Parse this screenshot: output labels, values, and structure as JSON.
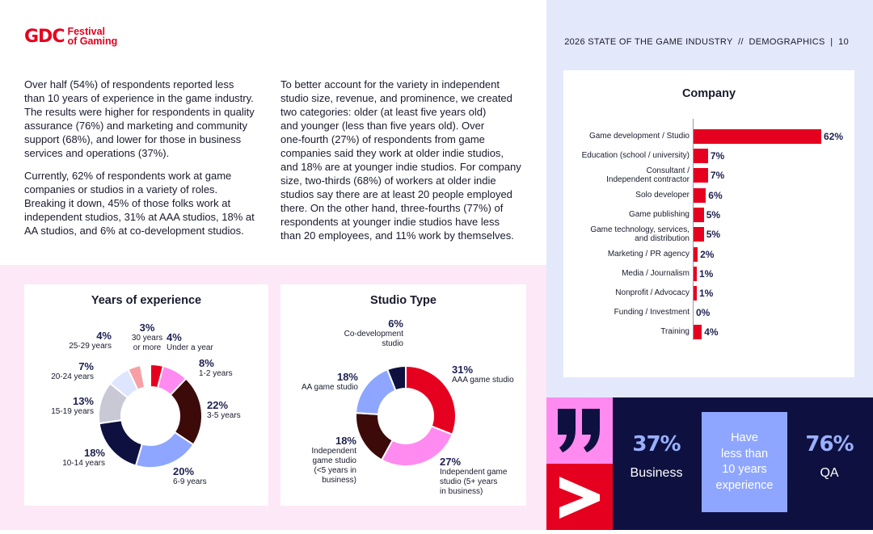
{
  "header": {
    "logo_mark": "GDC",
    "logo_line1": "Festival",
    "logo_line2": "of Gaming",
    "report_title": "2026 STATE OF THE GAME INDUSTRY  //  DEMOGRAPHICS  |  10"
  },
  "body": {
    "col1_p1": [
      "Over half (54%) of respondents reported less",
      "than 10 years of experience in the game industry.",
      "The results were higher for respondents in quality",
      "assurance (76%) and marketing and community",
      "support (68%), and lower for those in business",
      "services and operations (37%)."
    ],
    "col1_p2": [
      "Currently, 62% of respondents work at game",
      "companies or studios in a variety of roles.",
      "Breaking it down, 45% of those folks work at",
      "independent studios, 31% at AAA studios, 18% at",
      "AA studios, and 6% at co-development studios."
    ],
    "col2_p1": [
      "To better account for the variety in independent",
      "studio size, revenue, and prominence, we created",
      "two categories: older (at least five years old)",
      "and younger (less than five years old). Over",
      "one-fourth (27%) of respondents from game",
      "companies said they work at older indie studios,",
      "and 18% are at younger indie studios. For company",
      "size, two-thirds (68%) of workers at older indie",
      "studios say there are at least 20 people employed",
      "there. On the other hand, three-fourths (77%) of",
      "respondents at younger indie studios have less",
      "than 20 employees, and 11% work by themselves."
    ]
  },
  "chart_data": [
    {
      "type": "pie",
      "title": "Years of experience",
      "categories": [
        "Under a year",
        "1-2 years",
        "3-5 years",
        "6-9 years",
        "10-14 years",
        "15-19 years",
        "20-24 years",
        "25-29 years",
        "30 years or more"
      ],
      "values": [
        4,
        8,
        22,
        20,
        18,
        13,
        7,
        4,
        3
      ],
      "value_labels": [
        "4%",
        "8%",
        "22%",
        "20%",
        "18%",
        "13%",
        "7%",
        "4%",
        "3%"
      ],
      "colors": [
        "#e6001f",
        "#ff8af0",
        "#3d0a0a",
        "#8ea6ff",
        "#0e1140",
        "#c8c9d4",
        "#dde5ff",
        "#f6a0a6",
        "#ffffff"
      ]
    },
    {
      "type": "pie",
      "title": "Studio Type",
      "categories": [
        "AAA game studio",
        "Independent game studio (5+ years in business)",
        "Independent game studio (<5 years in business)",
        "AA game studio",
        "Co-development studio"
      ],
      "values": [
        31,
        27,
        18,
        18,
        6
      ],
      "value_labels": [
        "31%",
        "27%",
        "18%",
        "18%",
        "6%"
      ],
      "colors": [
        "#e6001f",
        "#ff8af0",
        "#3d0a0a",
        "#8ea6ff",
        "#0e1140"
      ]
    },
    {
      "type": "bar",
      "title": "Company",
      "categories": [
        "Game development / Studio",
        "Education (school / university)",
        "Consultant / Independent contractor",
        "Solo developer",
        "Game publishing",
        "Game technology, services, and distribution",
        "Marketing / PR agency",
        "Media / Journalism",
        "Nonprofit / Advocacy",
        "Funding / Investment",
        "Training"
      ],
      "values": [
        62,
        7,
        7,
        6,
        5,
        5,
        2,
        1,
        1,
        0,
        4
      ],
      "value_labels": [
        "62%",
        "7%",
        "7%",
        "6%",
        "5%",
        "5%",
        "2%",
        "1%",
        "1%",
        "0%",
        "4%"
      ],
      "color": "#e6001f"
    }
  ],
  "years_labels": [
    {
      "pct": "4%",
      "name": [
        "Under a year"
      ]
    },
    {
      "pct": "8%",
      "name": [
        "1-2 years"
      ]
    },
    {
      "pct": "22%",
      "name": [
        "3-5 years"
      ]
    },
    {
      "pct": "20%",
      "name": [
        "6-9 years"
      ]
    },
    {
      "pct": "18%",
      "name": [
        "10-14 years"
      ]
    },
    {
      "pct": "13%",
      "name": [
        "15-19 years"
      ]
    },
    {
      "pct": "7%",
      "name": [
        "20-24 years"
      ]
    },
    {
      "pct": "4%",
      "name": [
        "25-29 years"
      ]
    },
    {
      "pct": "3%",
      "name": [
        "30 years",
        "or more"
      ]
    }
  ],
  "studio_labels": [
    {
      "pct": "31%",
      "name": [
        "AAA game studio"
      ]
    },
    {
      "pct": "27%",
      "name": [
        "Independent game",
        "studio (5+ years",
        "in business)"
      ]
    },
    {
      "pct": "18%",
      "name": [
        "Independent",
        "game studio",
        "(<5 years in",
        "business)"
      ]
    },
    {
      "pct": "18%",
      "name": [
        "AA game studio"
      ]
    },
    {
      "pct": "6%",
      "name": [
        "Co-development",
        "studio"
      ]
    }
  ],
  "company_labels": [
    [
      "Game development / Studio"
    ],
    [
      "Education (school / university)"
    ],
    [
      "Consultant /",
      "Independent contractor"
    ],
    [
      "Solo developer"
    ],
    [
      "Game publishing"
    ],
    [
      "Game technology, services,",
      "and distribution"
    ],
    [
      "Marketing / PR agency"
    ],
    [
      "Media / Journalism"
    ],
    [
      "Nonprofit / Advocacy"
    ],
    [
      "Funding / Investment"
    ],
    [
      "Training"
    ]
  ],
  "callout": {
    "stat1_pct": "37%",
    "stat1_label": "Business",
    "middle_lines": [
      "Have",
      "less than",
      "10 years",
      "experience"
    ],
    "stat2_pct": "76%",
    "stat2_label": "QA",
    "quote_glyph": "99",
    "arrow_glyph": ">"
  },
  "colors": {
    "brand_red": "#e6001f",
    "navy": "#0e1140",
    "periwinkle": "#8ea6ff",
    "pink": "#ff8af0",
    "light_blue_bg": "#e4e8fb",
    "light_pink_bg": "#fde8f7"
  }
}
